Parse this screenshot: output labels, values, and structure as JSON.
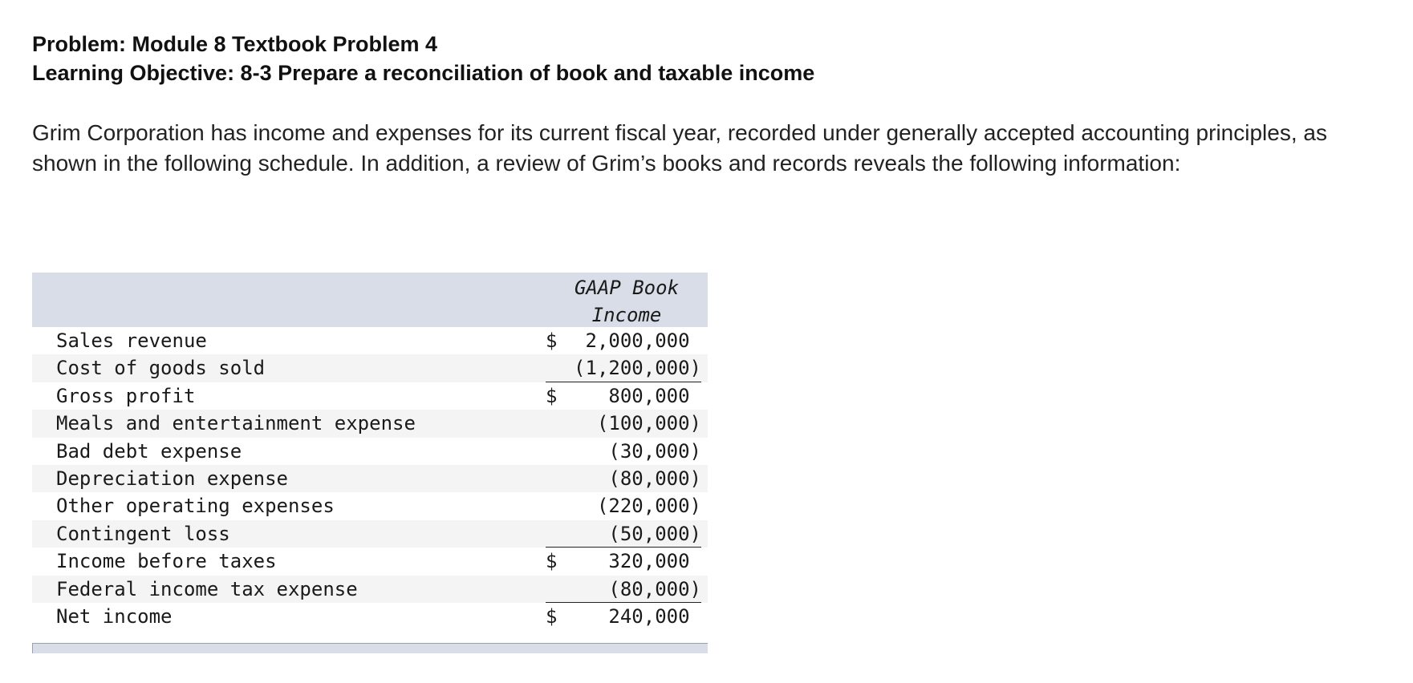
{
  "problem": {
    "title": "Problem: Module 8 Textbook Problem 4",
    "objective": "Learning Objective: 8-3 Prepare a reconciliation of book and taxable income",
    "intro": "Grim Corporation has income and expenses for its current fiscal year, recorded under generally accepted accounting principles, as shown in the following schedule. In addition, a review of Grim’s books and records reveals the following information:"
  },
  "schedule": {
    "column_header": "GAAP Book Income",
    "rows": [
      {
        "label": "Sales revenue",
        "dollar": "$",
        "amount": "2,000,000 "
      },
      {
        "label": "Cost of goods sold",
        "dollar": "",
        "amount": "(1,200,000)"
      },
      {
        "label": "Gross profit",
        "dollar": "$",
        "amount": "800,000 "
      },
      {
        "label": "Meals and entertainment expense",
        "dollar": "",
        "amount": "(100,000)"
      },
      {
        "label": "Bad debt expense",
        "dollar": "",
        "amount": "(30,000)"
      },
      {
        "label": "Depreciation expense",
        "dollar": "",
        "amount": "(80,000)"
      },
      {
        "label": "Other operating expenses",
        "dollar": "",
        "amount": "(220,000)"
      },
      {
        "label": "Contingent loss",
        "dollar": "",
        "amount": "(50,000)"
      },
      {
        "label": "Income before taxes",
        "dollar": "$",
        "amount": "320,000 "
      },
      {
        "label": "Federal income tax expense",
        "dollar": "",
        "amount": "(80,000)"
      },
      {
        "label": "Net income",
        "dollar": "$",
        "amount": "240,000 "
      }
    ]
  }
}
